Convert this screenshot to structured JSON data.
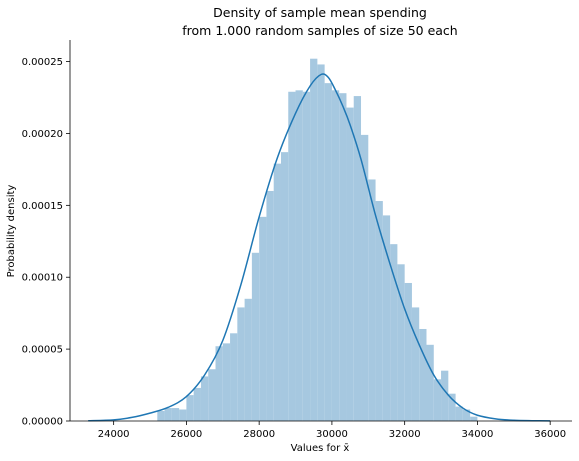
{
  "chart_data": {
    "type": "bar",
    "title_line1": "Density of sample mean spending",
    "title_line2": "from 1.000 random samples of size 50 each",
    "xlabel": "Values for x̄",
    "ylabel": "Probability density",
    "xlim": [
      22800,
      36600
    ],
    "ylim": [
      0,
      0.000265
    ],
    "xticks": [
      24000,
      26000,
      28000,
      30000,
      32000,
      34000,
      36000
    ],
    "xtick_labels": [
      "24000",
      "26000",
      "28000",
      "30000",
      "32000",
      "34000",
      "36000"
    ],
    "yticks": [
      0,
      5e-05,
      0.0001,
      0.00015,
      0.0002,
      0.00025
    ],
    "ytick_labels": [
      "0.00000",
      "0.00005",
      "0.00010",
      "0.00015",
      "0.00020",
      "0.00025"
    ],
    "grid": false,
    "colors": {
      "bar": "#a6c8e0",
      "kde": "#1f77b4",
      "axis": "#000000"
    },
    "histogram": {
      "bin_width": 200,
      "bins": [
        [
          25200,
          7e-06
        ],
        [
          25400,
          9e-06
        ],
        [
          25600,
          9e-06
        ],
        [
          25800,
          8e-06
        ],
        [
          26000,
          1.8e-05
        ],
        [
          26200,
          2.3e-05
        ],
        [
          26400,
          3.1e-05
        ],
        [
          26600,
          3.6e-05
        ],
        [
          26800,
          5.2e-05
        ],
        [
          27000,
          5.4e-05
        ],
        [
          27200,
          6.1e-05
        ],
        [
          27400,
          7.9e-05
        ],
        [
          27600,
          8.5e-05
        ],
        [
          27800,
          0.000117
        ],
        [
          28000,
          0.000142
        ],
        [
          28200,
          0.00016
        ],
        [
          28400,
          0.000179
        ],
        [
          28600,
          0.000187
        ],
        [
          28800,
          0.000229
        ],
        [
          29000,
          0.00023
        ],
        [
          29200,
          0.000229
        ],
        [
          29400,
          0.000252
        ],
        [
          29600,
          0.000248
        ],
        [
          29800,
          0.000235
        ],
        [
          30000,
          0.00023
        ],
        [
          30200,
          0.000228
        ],
        [
          30400,
          0.000218
        ],
        [
          30600,
          0.000226
        ],
        [
          30800,
          0.000199
        ],
        [
          31000,
          0.000168
        ],
        [
          31200,
          0.000153
        ],
        [
          31400,
          0.000143
        ],
        [
          31600,
          0.000123
        ],
        [
          31800,
          0.000109
        ],
        [
          32000,
          9.6e-05
        ],
        [
          32200,
          7.9e-05
        ],
        [
          32400,
          6.4e-05
        ],
        [
          32600,
          5.3e-05
        ],
        [
          32800,
          2.9e-05
        ],
        [
          33000,
          3.5e-05
        ],
        [
          33200,
          1.9e-05
        ],
        [
          33400,
          1e-05
        ],
        [
          33600,
          8e-06
        ],
        [
          33800,
          3e-06
        ]
      ]
    },
    "kde": {
      "x": [
        23300,
        24000,
        24500,
        25000,
        25500,
        26000,
        26500,
        27000,
        27500,
        28000,
        28500,
        29000,
        29400,
        29700,
        29900,
        30100,
        30300,
        30500,
        30800,
        31200,
        31600,
        32000,
        32400,
        32800,
        33200,
        33600,
        34000,
        34500,
        35000,
        35500,
        36000
      ],
      "y": [
        2e-07,
        8e-07,
        2.5e-06,
        5.5e-06,
        9.5e-06,
        1.7e-05,
        3.2e-05,
        5.6e-05,
        9.5e-05,
        0.000142,
        0.000183,
        0.000214,
        0.000233,
        0.000241,
        0.000239,
        0.00023,
        0.000219,
        0.000206,
        0.000182,
        0.000143,
        0.000109,
        7.8e-05,
        5.3e-05,
        3.2e-05,
        1.8e-05,
        9e-06,
        4e-06,
        1.5e-06,
        5e-07,
        2e-07,
        1e-07
      ]
    }
  }
}
